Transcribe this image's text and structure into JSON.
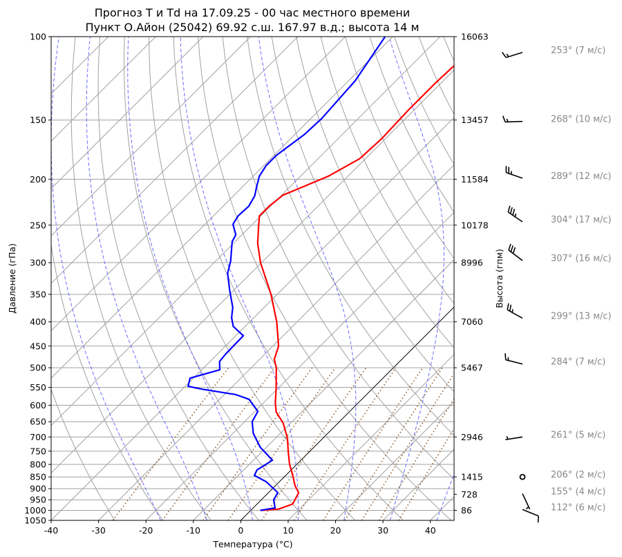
{
  "chart_data": {
    "type": "line",
    "subtype": "skew-t log-p diagram",
    "title": [
      "Прогноз T и Td на 17.09.25 - 00 час местного времени",
      "Пункт О.Айон (25042) 69.92 с.ш. 167.97 в.д.; высота 14 м"
    ],
    "xlabel": "Температура (°C)",
    "ylabel": "Давление (гПа)",
    "y2label": "Высота (гпм)",
    "xlim": [
      -40,
      45
    ],
    "ylim": [
      1050,
      100
    ],
    "xticks": [
      -40,
      -30,
      -20,
      -10,
      0,
      10,
      20,
      30,
      40
    ],
    "yticks": [
      100,
      150,
      200,
      250,
      300,
      350,
      400,
      450,
      500,
      550,
      600,
      650,
      700,
      750,
      800,
      850,
      900,
      950,
      1000,
      1050
    ],
    "height_ticks": [
      {
        "p": 100,
        "label": "16063"
      },
      {
        "p": 150,
        "label": "13457"
      },
      {
        "p": 200,
        "label": "11584"
      },
      {
        "p": 250,
        "label": "10178"
      },
      {
        "p": 300,
        "label": "8996"
      },
      {
        "p": 400,
        "label": "7060"
      },
      {
        "p": 500,
        "label": "5467"
      },
      {
        "p": 700,
        "label": "2946"
      },
      {
        "p": 850,
        "label": "1415"
      },
      {
        "p": 925,
        "label": "728"
      },
      {
        "p": 1000,
        "label": "86"
      }
    ],
    "series": [
      {
        "name": "T",
        "color": "#ff0000",
        "points": [
          [
            2.3,
            1000
          ],
          [
            5.6,
            994
          ],
          [
            7.5,
            970
          ],
          [
            6.4,
            918
          ],
          [
            4.2,
            888
          ],
          [
            1.3,
            841
          ],
          [
            -1.5,
            800
          ],
          [
            -4.6,
            750
          ],
          [
            -7.5,
            704
          ],
          [
            -11.6,
            654
          ],
          [
            -15.4,
            620
          ],
          [
            -17.5,
            593
          ],
          [
            -20.6,
            550
          ],
          [
            -24.7,
            500
          ],
          [
            -26.9,
            480
          ],
          [
            -28.8,
            450
          ],
          [
            -34.3,
            400
          ],
          [
            -41.3,
            350
          ],
          [
            -50.2,
            300
          ],
          [
            -54.9,
            273
          ],
          [
            -58.5,
            250
          ],
          [
            -60.3,
            239
          ],
          [
            -60.3,
            228
          ],
          [
            -59.7,
            216
          ],
          [
            -57.1,
            207
          ],
          [
            -54.1,
            197
          ],
          [
            -51.2,
            181
          ],
          [
            -50.8,
            164
          ],
          [
            -51.2,
            143
          ],
          [
            -51.2,
            125
          ],
          [
            -50.9,
            115
          ],
          [
            -51.0,
            100
          ]
        ]
      },
      {
        "name": "Td",
        "color": "#0000ff",
        "points": [
          [
            2.0,
            1000
          ],
          [
            4.6,
            988
          ],
          [
            2.6,
            950
          ],
          [
            2.0,
            918
          ],
          [
            -2.8,
            870
          ],
          [
            -6.6,
            844
          ],
          [
            -7.2,
            822
          ],
          [
            -6.0,
            784
          ],
          [
            -11.3,
            736
          ],
          [
            -15.7,
            688
          ],
          [
            -18.4,
            650
          ],
          [
            -19.4,
            618
          ],
          [
            -23.8,
            583
          ],
          [
            -27.5,
            570
          ],
          [
            -35.8,
            555
          ],
          [
            -39.4,
            547
          ],
          [
            -40.7,
            526
          ],
          [
            -36.2,
            505
          ],
          [
            -38.0,
            485
          ],
          [
            -38.3,
            467
          ],
          [
            -38.4,
            428
          ],
          [
            -42.5,
            409
          ],
          [
            -44.7,
            392
          ],
          [
            -46.6,
            373
          ],
          [
            -50.9,
            343
          ],
          [
            -54.9,
            316
          ],
          [
            -56.8,
            298
          ],
          [
            -60.6,
            271
          ],
          [
            -61.3,
            262
          ],
          [
            -64.1,
            249
          ],
          [
            -64.8,
            239
          ],
          [
            -64.6,
            228
          ],
          [
            -65.5,
            217
          ],
          [
            -67.1,
            207
          ],
          [
            -68.7,
            197
          ],
          [
            -69.5,
            187
          ],
          [
            -69.5,
            178
          ],
          [
            -68.0,
            161
          ],
          [
            -67.7,
            149
          ],
          [
            -68.6,
            124
          ],
          [
            -71.6,
            100
          ]
        ]
      }
    ],
    "winds": [
      {
        "p": 108,
        "dir": 253,
        "speed": 7,
        "label": "253° (7 м/с)"
      },
      {
        "p": 151,
        "dir": 268,
        "speed": 10,
        "label": "268° (10 м/с)"
      },
      {
        "p": 199,
        "dir": 289,
        "speed": 12,
        "label": "289° (12 м/с)"
      },
      {
        "p": 246,
        "dir": 304,
        "speed": 17,
        "label": "304° (17 м/с)"
      },
      {
        "p": 297,
        "dir": 307,
        "speed": 16,
        "label": "307° (16 м/с)"
      },
      {
        "p": 393,
        "dir": 299,
        "speed": 13,
        "label": "299° (13 м/с)"
      },
      {
        "p": 491,
        "dir": 284,
        "speed": 7,
        "label": "284° (7 м/с)"
      },
      {
        "p": 700,
        "dir": 261,
        "speed": 5,
        "label": "261° (5 м/с)"
      },
      {
        "p": 850,
        "dir": 206,
        "speed": 2,
        "label": "206° (2 м/с)"
      },
      {
        "p": 922,
        "dir": 155,
        "speed": 4,
        "label": "155° (4 м/с)"
      },
      {
        "p": 996,
        "dir": 112,
        "speed": 6,
        "label": "112° (6 м/с)"
      }
    ],
    "reference_lines": {
      "zero_isotherm_color": "#000000",
      "dry_adiabat_color": "#a0a0a0",
      "moist_adiabat_color": "#6b6bff",
      "mixing_ratio_color": "#8b5a2b"
    },
    "grid": true
  }
}
